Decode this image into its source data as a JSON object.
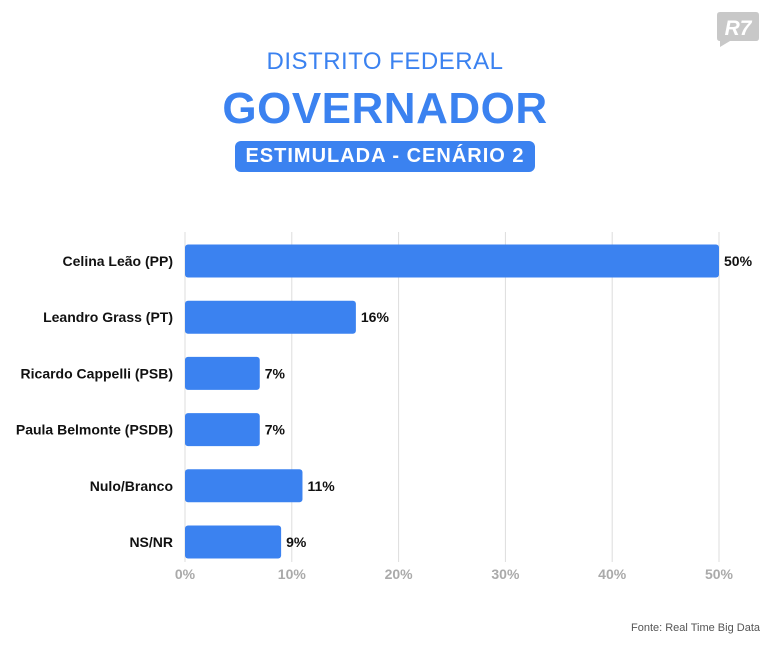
{
  "header": {
    "subtitle": "DISTRITO FEDERAL",
    "title": "GOVERNADOR",
    "badge": "ESTIMULADA - CENÁRIO 2",
    "logo_text": "R7"
  },
  "footer": {
    "source": "Fonte: Real Time Big Data"
  },
  "colors": {
    "accent": "#3b82f0",
    "logo": "#c8c8c8",
    "grid": "#dddddd",
    "tick": "#aaaaaa"
  },
  "chart_data": {
    "type": "bar",
    "orientation": "horizontal",
    "categories": [
      "Celina Leão (PP)",
      "Leandro Grass (PT)",
      "Ricardo Cappelli (PSB)",
      "Paula Belmonte (PSDB)",
      "Nulo/Branco",
      "NS/NR"
    ],
    "values": [
      50,
      16,
      7,
      7,
      11,
      9
    ],
    "data_labels": [
      "50%",
      "16%",
      "7%",
      "7%",
      "11%",
      "9%"
    ],
    "xlim": [
      0,
      50
    ],
    "xticks": [
      0,
      10,
      20,
      30,
      40,
      50
    ],
    "xtick_labels": [
      "0%",
      "10%",
      "20%",
      "30%",
      "40%",
      "50%"
    ],
    "grid": true
  }
}
